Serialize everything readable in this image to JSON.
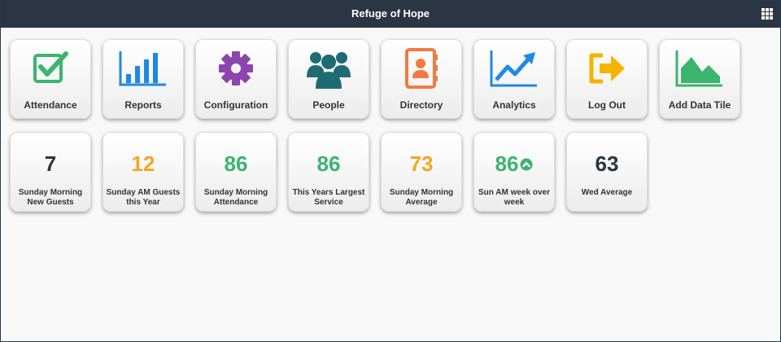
{
  "app": {
    "title": "Refuge of Hope",
    "menu_icon": "apps-grid-icon"
  },
  "tiles": [
    {
      "label": "Attendance",
      "icon": "checkbox-check-icon",
      "color": "#3cb46e"
    },
    {
      "label": "Reports",
      "icon": "bar-chart-icon",
      "color": "#1e88e5"
    },
    {
      "label": "Configuration",
      "icon": "gear-icon",
      "color": "#8e44ad"
    },
    {
      "label": "People",
      "icon": "people-group-icon",
      "color": "#1e6b73"
    },
    {
      "label": "Directory",
      "icon": "address-book-icon",
      "color": "#f07b3f"
    },
    {
      "label": "Analytics",
      "icon": "trend-line-icon",
      "color": "#1e88e5"
    },
    {
      "label": "Log Out",
      "icon": "logout-arrow-icon",
      "color": "#f5b400"
    },
    {
      "label": "Add Data Tile",
      "icon": "area-chart-icon",
      "color": "#3cb46e"
    }
  ],
  "stats": [
    {
      "value": "7",
      "label": "Sunday Morning New Guests",
      "color": "#2b3544"
    },
    {
      "value": "12",
      "label": "Sunday AM Guests this Year",
      "color": "#f5a623"
    },
    {
      "value": "86",
      "label": "Sunday Morning Attendance",
      "color": "#3cb46e"
    },
    {
      "value": "86",
      "label": "This Years Largest Service",
      "color": "#3cb46e"
    },
    {
      "value": "73",
      "label": "Sunday Morning Average",
      "color": "#f5a623"
    },
    {
      "value": "86",
      "label": "Sun AM week over week",
      "color": "#3cb46e",
      "trend_icon": "trend-up-circle-icon"
    },
    {
      "value": "63",
      "label": "Wed Average",
      "color": "#2b3544"
    }
  ]
}
